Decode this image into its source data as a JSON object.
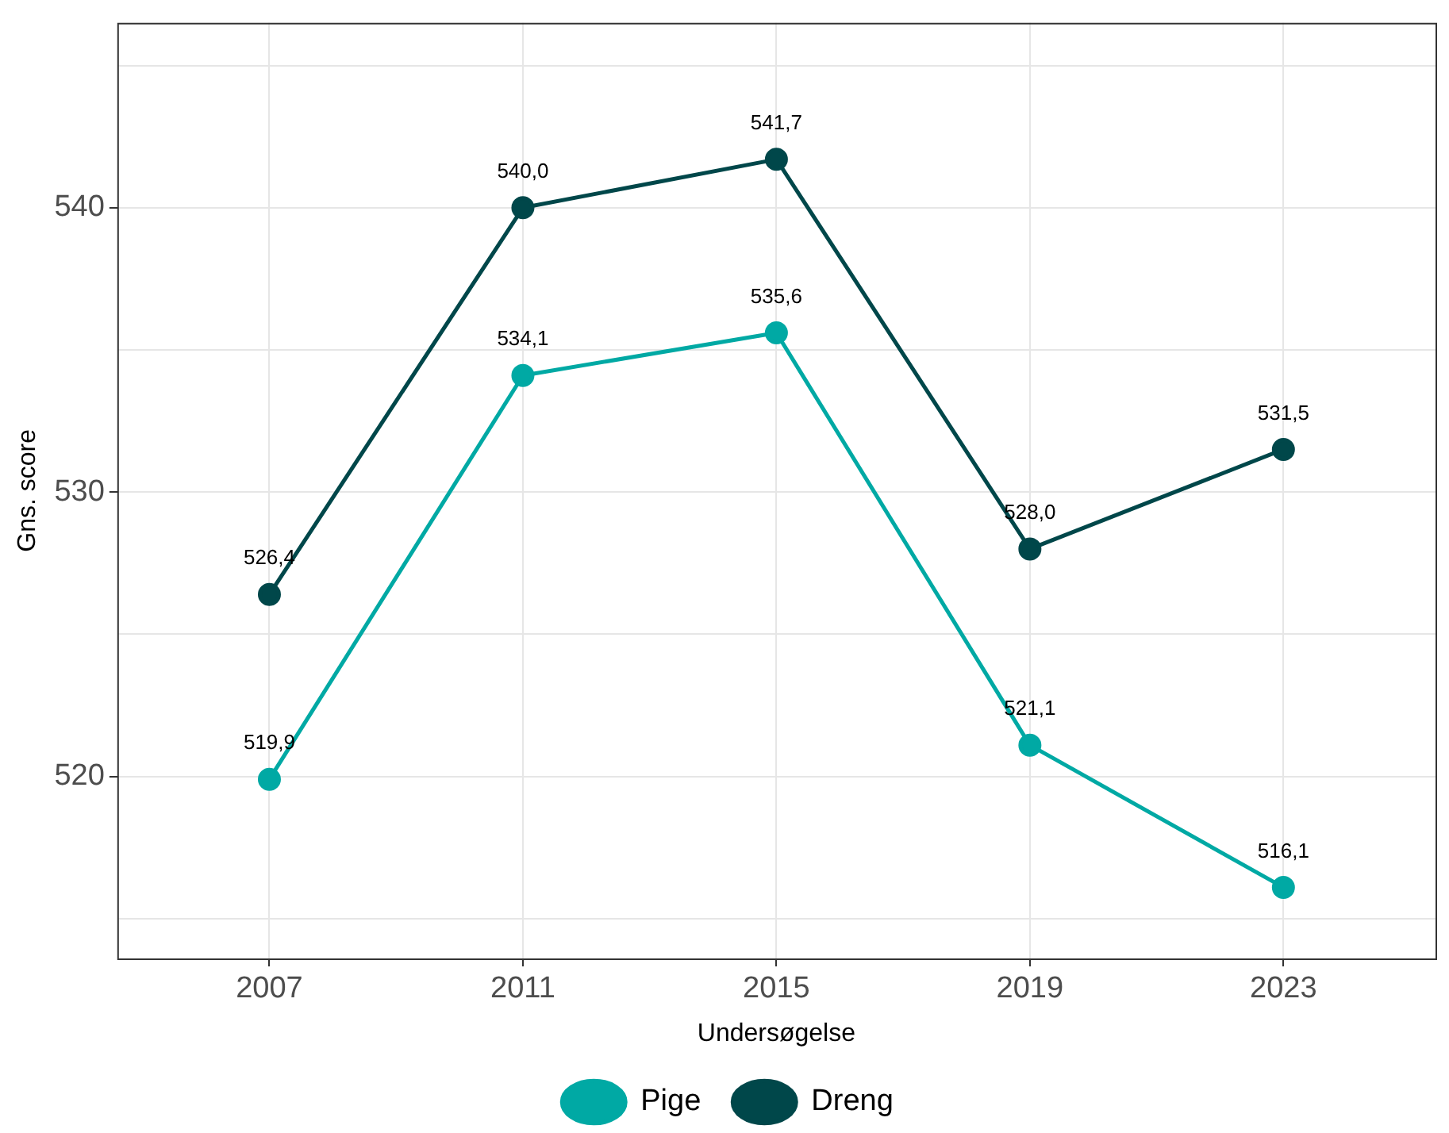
{
  "chart_data": {
    "type": "line",
    "xlabel": "Undersøgelse",
    "ylabel": "Gns. score",
    "x": [
      2007,
      2011,
      2015,
      2019,
      2023
    ],
    "xlim": [
      2004.6,
      2025.4
    ],
    "xticks": [
      2007,
      2011,
      2015,
      2019,
      2023
    ],
    "ylim": [
      513.6,
      546.5
    ],
    "yticks": [
      {
        "value": 515,
        "label": null
      },
      520,
      {
        "value": 525,
        "label": null
      },
      530,
      {
        "value": 535,
        "label": null
      },
      540,
      {
        "value": 545,
        "label": null
      }
    ],
    "grid": true,
    "legend": "bottom",
    "marker": "circle",
    "line_style": "solid",
    "series": [
      {
        "name": "Pige",
        "color": "#00a9a4",
        "values": [
          519.9,
          534.1,
          535.6,
          521.1,
          516.1
        ],
        "value_labels": [
          "519,9",
          "534,1",
          "535,6",
          "521,1",
          "516,1"
        ]
      },
      {
        "name": "Dreng",
        "color": "#00474a",
        "values": [
          526.4,
          540.0,
          541.7,
          528.0,
          531.5
        ],
        "value_labels": [
          "526,4",
          "540,0",
          "541,7",
          "528,0",
          "531,5"
        ]
      }
    ]
  }
}
